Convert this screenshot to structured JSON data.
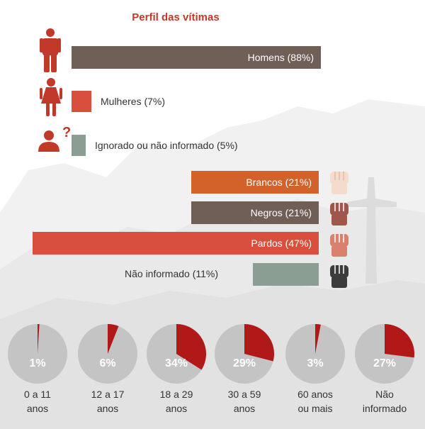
{
  "title": "Perfil das vítimas",
  "colors": {
    "accent_red": "#c0392b",
    "brown": "#6f5f57",
    "orange": "#d2612a",
    "coral": "#d94f3d",
    "sage": "#8a9e93",
    "pie_grey": "#c4c4c4",
    "pie_red": "#b01917"
  },
  "chart_data": [
    {
      "type": "bar",
      "series_group": "gender",
      "categories": [
        "Homens",
        "Mulheres",
        "Ignorado ou não informado"
      ],
      "values": [
        88,
        7,
        5
      ],
      "labels": [
        "Homens (88%)",
        "Mulheres (7%)",
        "Ignorado ou não informado (5%)"
      ],
      "icons": [
        "man-icon",
        "woman-icon",
        "unknown-person-icon"
      ]
    },
    {
      "type": "bar",
      "series_group": "race",
      "categories": [
        "Brancos",
        "Negros",
        "Pardos",
        "Não informado"
      ],
      "values": [
        21,
        21,
        47,
        11
      ],
      "labels": [
        "Brancos (21%)",
        "Negros (21%)",
        "Pardos (47%)",
        "Não informado (11%)"
      ],
      "icons": [
        "fist-icon",
        "fist-icon",
        "fist-icon",
        "fist-icon"
      ]
    },
    {
      "type": "pie",
      "series_group": "age",
      "categories": [
        "0 a 11 anos",
        "12 a 17 anos",
        "18 a 29 anos",
        "30 a 59 anos",
        "60 anos ou mais",
        "Não informado"
      ],
      "values": [
        1,
        6,
        34,
        29,
        3,
        27
      ],
      "pct_labels": [
        "1%",
        "6%",
        "34%",
        "29%",
        "3%",
        "27%"
      ],
      "label_lines": [
        [
          "0 a 11",
          "anos"
        ],
        [
          "12 a 17",
          "anos"
        ],
        [
          "18 a 29",
          "anos"
        ],
        [
          "30 a 59",
          "anos"
        ],
        [
          "60 anos",
          "ou mais"
        ],
        [
          "Não",
          "informado"
        ]
      ]
    }
  ]
}
